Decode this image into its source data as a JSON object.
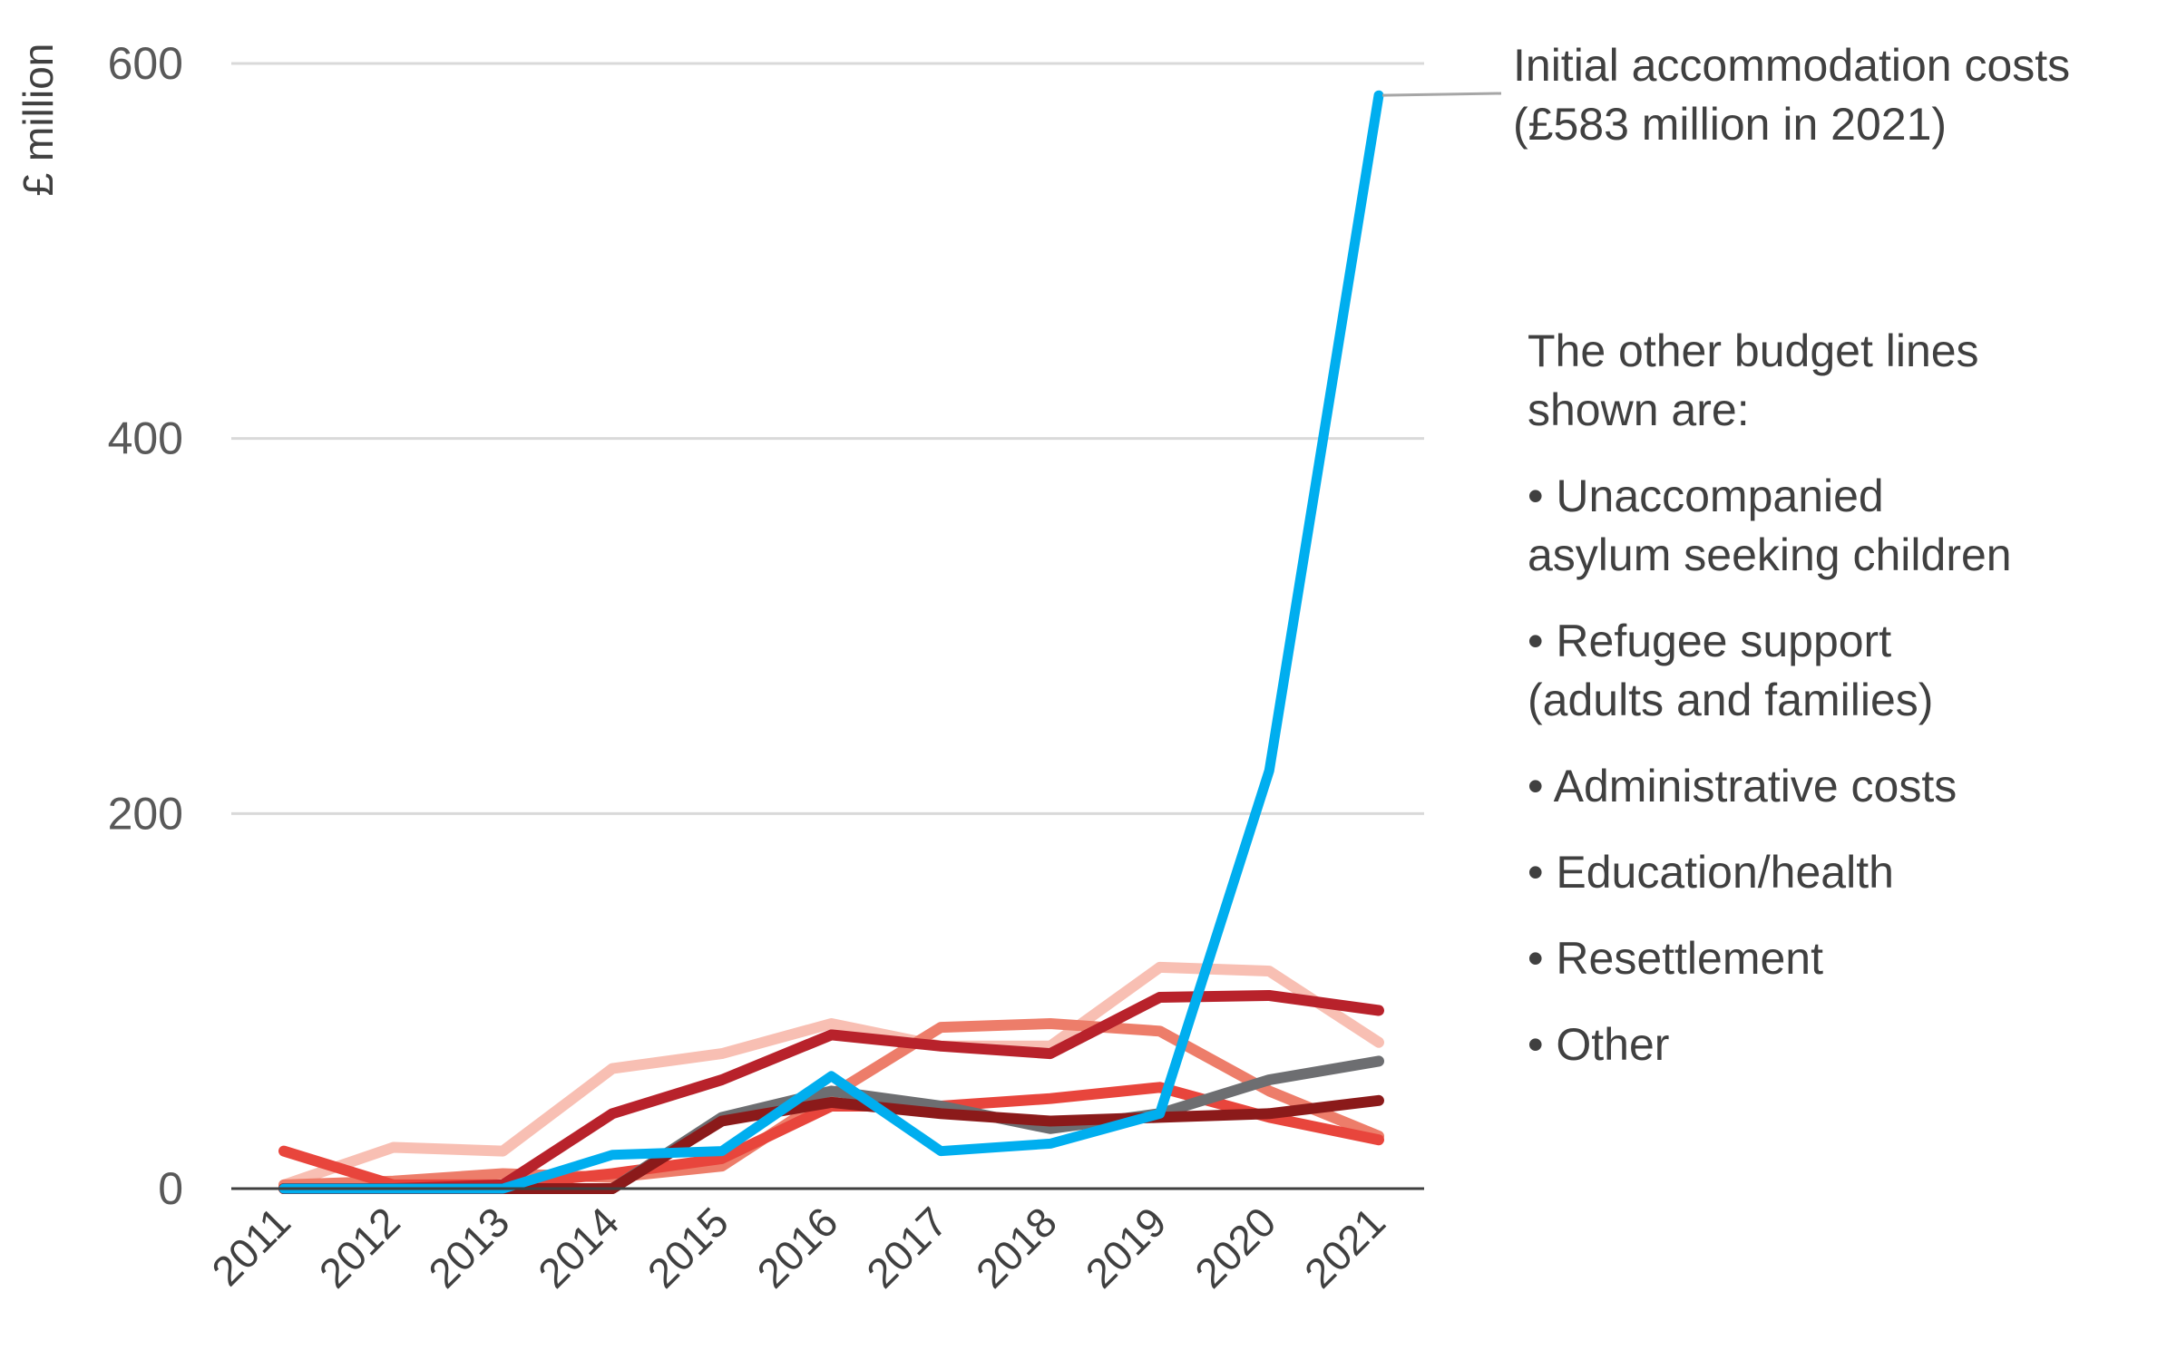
{
  "chart_data": {
    "type": "line",
    "ylabel": "£ million",
    "xlabel": "",
    "ylim": [
      0,
      600
    ],
    "yticks": [
      "0",
      "200",
      "400",
      "600"
    ],
    "x": [
      "2011",
      "2012",
      "2013",
      "2014",
      "2015",
      "2016",
      "2017",
      "2018",
      "2019",
      "2020",
      "2021"
    ],
    "grid": true,
    "series": [
      {
        "color": "#f8bfb3",
        "values": [
          2,
          22,
          20,
          64,
          72,
          88,
          76,
          76,
          118,
          116,
          78
        ]
      },
      {
        "color": "#ed7d6a",
        "values": [
          2,
          4,
          8,
          6,
          12,
          50,
          86,
          88,
          84,
          52,
          28
        ]
      },
      {
        "color": "#e8453c",
        "values": [
          20,
          2,
          2,
          8,
          16,
          44,
          44,
          48,
          54,
          38,
          26
        ]
      },
      {
        "color": "#6d6e71",
        "values": [
          0,
          0,
          0,
          0,
          38,
          52,
          44,
          32,
          40,
          58,
          68
        ]
      },
      {
        "color": "#b8222b",
        "values": [
          0,
          0,
          2,
          40,
          58,
          82,
          76,
          72,
          102,
          103,
          95
        ]
      },
      {
        "color": "#8b1a1a",
        "values": [
          0,
          0,
          0,
          0,
          36,
          46,
          40,
          36,
          38,
          40,
          47
        ]
      },
      {
        "color": "#00aeef",
        "values": [
          0,
          0,
          0,
          18,
          20,
          60,
          20,
          24,
          40,
          223,
          583
        ]
      }
    ],
    "annotations": {
      "callout_line1": "Initial accommodation costs",
      "callout_line2": "(£583 million in 2021)",
      "intro_line1": "The other budget lines",
      "intro_line2": "shown are:",
      "items": [
        {
          "line1": "• Unaccompanied",
          "line2": "asylum seeking children"
        },
        {
          "line1": "• Refugee support",
          "line2": "(adults and families)"
        },
        {
          "line1": "• Administrative costs"
        },
        {
          "line1": "• Education/health"
        },
        {
          "line1": "• Resettlement"
        },
        {
          "line1": "• Other"
        }
      ]
    },
    "callout_leader_color": "#a6a6a6"
  }
}
